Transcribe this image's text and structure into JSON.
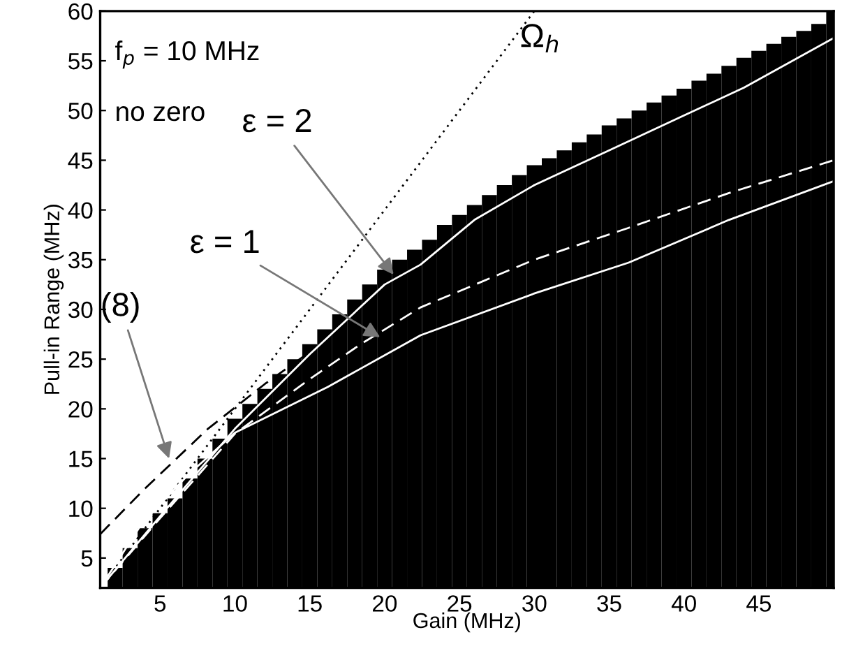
{
  "chart_data": {
    "type": "line",
    "xlabel": "Gain (MHz)",
    "ylabel": "Pull-in Range (MHz)",
    "xlim": [
      1,
      50
    ],
    "ylim": [
      2,
      60
    ],
    "xticks": [
      5,
      10,
      15,
      20,
      25,
      30,
      35,
      40,
      45
    ],
    "yticks": [
      5,
      10,
      15,
      20,
      25,
      30,
      35,
      40,
      45,
      50,
      55,
      60
    ],
    "grid": false,
    "marker": "none",
    "series": [
      {
        "type": "bar",
        "color": "#000000",
        "x": [
          1,
          2,
          3,
          4,
          5,
          6,
          7,
          8,
          9,
          10,
          11,
          12,
          13,
          14,
          15,
          16,
          17,
          18,
          19,
          20,
          21,
          22,
          23,
          24,
          25,
          26,
          27,
          28,
          29,
          30,
          31,
          32,
          33,
          34,
          35,
          36,
          37,
          38,
          39,
          40,
          41,
          42,
          43,
          44,
          45,
          46,
          47,
          48,
          49,
          50
        ],
        "values": [
          2,
          4,
          6,
          8,
          9.5,
          11,
          13,
          15,
          17,
          19,
          20.5,
          22,
          23.5,
          25,
          26.5,
          28,
          29.5,
          31,
          32.5,
          34,
          35,
          36,
          37,
          38.5,
          39.5,
          40.5,
          41.5,
          42.5,
          43.5,
          44.5,
          45.2,
          46,
          46.8,
          47.6,
          48.5,
          49.2,
          50,
          50.8,
          51.5,
          52.2,
          53,
          53.7,
          54.5,
          55.3,
          56,
          56.7,
          57.4,
          58,
          58.7,
          60
        ]
      },
      {
        "color": "#000000",
        "line_style": "dotted",
        "x": [
          1,
          30
        ],
        "values": [
          2,
          60
        ]
      },
      {
        "type": "line",
        "color": "#000000",
        "line_style": "dashed",
        "x": [
          1,
          4,
          8.2,
          12,
          16.2
        ],
        "values": [
          7.4,
          12,
          18,
          22.5,
          27
        ]
      },
      {
        "type": "line",
        "color": "#ffffff",
        "line_style": "solid",
        "x": [
          1,
          5,
          10,
          15,
          20,
          22.4,
          26,
          30,
          35,
          40,
          44,
          50
        ],
        "values": [
          2,
          9.2,
          18,
          25.5,
          32.5,
          34.5,
          39,
          42.5,
          46,
          49.5,
          52.3,
          57.3
        ]
      },
      {
        "type": "line",
        "color": "#ffffff",
        "line_style": "dashed",
        "x": [
          1,
          5,
          10,
          15,
          18.4,
          22.4,
          30,
          36.3,
          43,
          50
        ],
        "values": [
          2,
          9,
          17.5,
          23,
          26.5,
          30.2,
          35,
          38.2,
          41.7,
          45
        ]
      },
      {
        "type": "line",
        "color": "#ffffff",
        "line_style": "solid",
        "x": [
          1,
          3.8,
          6.9,
          10,
          16.2,
          22.4,
          30,
          36.3,
          43,
          50
        ],
        "values": [
          2,
          8.5,
          13.4,
          17.6,
          22.2,
          27.4,
          31.6,
          34.7,
          39,
          42.9
        ]
      }
    ],
    "annotations": [
      "f$_{p}$ = 10 MHz",
      "no zero",
      {
        "text": "Ω$_{h}$",
        "x": 28,
        "y": 56
      },
      {
        "text": "ε = 2",
        "x": 20.6,
        "y": 33.5
      },
      {
        "text": "ε = 1",
        "x": 19.7,
        "y": 27.2
      },
      {
        "text": "(8)",
        "x": 5.6,
        "y": 15
      }
    ]
  }
}
